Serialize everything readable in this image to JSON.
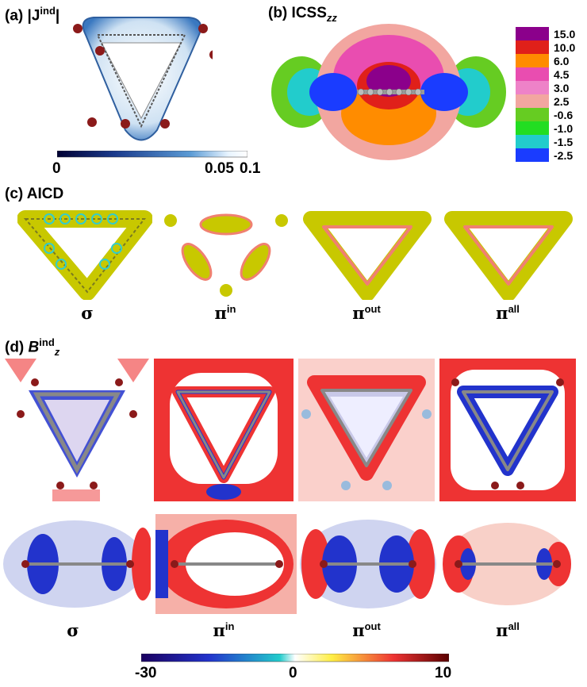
{
  "panel_a": {
    "label": "(a) |J",
    "label_sup": "ind",
    "label_end": "|",
    "colorbar_ticks": [
      "0",
      "0.05",
      "0.1"
    ],
    "colors": [
      "#000033",
      "#1a3a8c",
      "#5b9bd5",
      "#e8f4ff",
      "#ffffff"
    ]
  },
  "panel_b": {
    "label": "(b) ICSS",
    "label_sub": "zz",
    "legend": [
      {
        "value": "15.0",
        "color": "#8b008b"
      },
      {
        "value": "10.0",
        "color": "#e0201a"
      },
      {
        "value": "6.0",
        "color": "#ff8c00"
      },
      {
        "value": "4.5",
        "color": "#e94db0"
      },
      {
        "value": "3.0",
        "color": "#ee82c8"
      },
      {
        "value": "2.5",
        "color": "#f2a6a0"
      },
      {
        "value": "-0.6",
        "color": "#66cc22"
      },
      {
        "value": "-1.0",
        "color": "#22dd22"
      },
      {
        "value": "-1.5",
        "color": "#22cccc"
      },
      {
        "value": "-2.5",
        "color": "#1a3cff"
      }
    ]
  },
  "panel_c": {
    "label": "(c) AICD",
    "items": [
      {
        "symbol": "σ",
        "sup": ""
      },
      {
        "symbol": "π",
        "sup": "in"
      },
      {
        "symbol": "π",
        "sup": "out"
      },
      {
        "symbol": "π",
        "sup": "all"
      }
    ]
  },
  "panel_d": {
    "label": "(d) ",
    "label_b": "B",
    "label_sup": "ind",
    "label_sub": "z",
    "items": [
      {
        "symbol": "σ",
        "sup": ""
      },
      {
        "symbol": "π",
        "sup": "in"
      },
      {
        "symbol": "π",
        "sup": "out"
      },
      {
        "symbol": "π",
        "sup": "all"
      }
    ],
    "colorbar_ticks": [
      "-30",
      "0",
      "10"
    ]
  }
}
